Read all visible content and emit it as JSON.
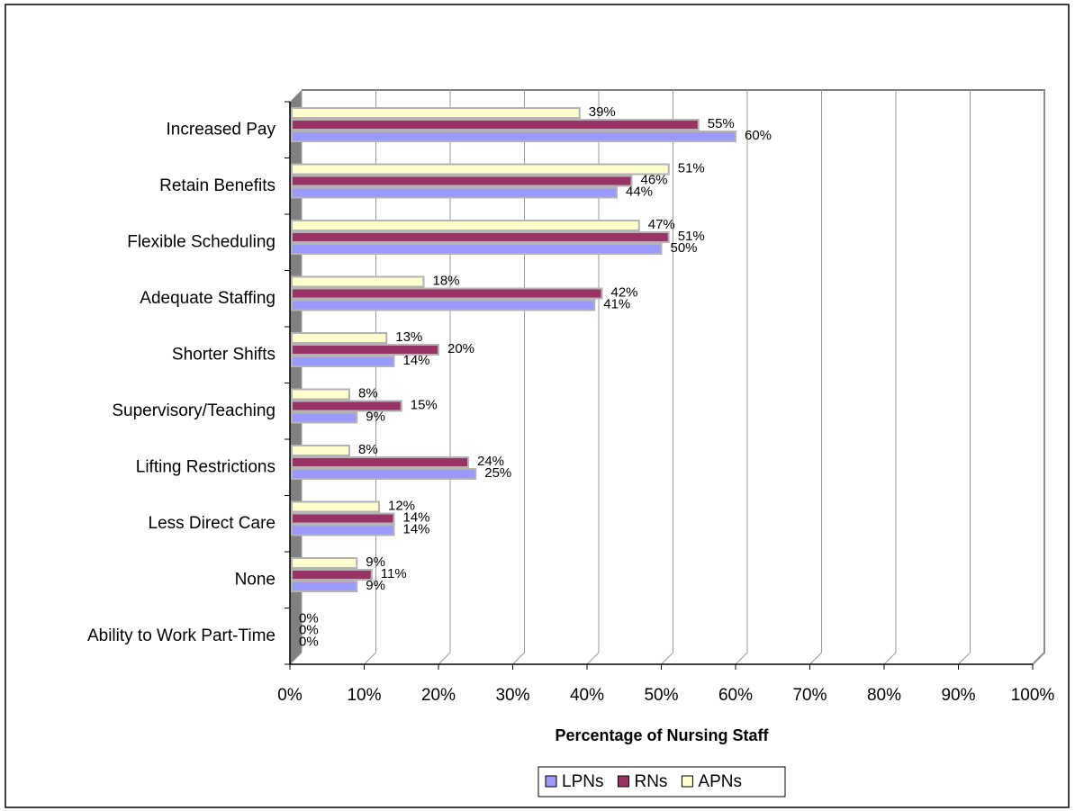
{
  "chart_data": {
    "type": "bar",
    "orientation": "horizontal",
    "x_axis_label": "Percentage of Nursing Staff",
    "categories": [
      "Increased Pay",
      "Retain Benefits",
      "Flexible Scheduling",
      "Adequate Staffing",
      "Shorter Shifts",
      "Supervisory/Teaching",
      "Lifting Restrictions",
      "Less Direct Care",
      "None",
      "Ability to Work Part-Time"
    ],
    "series": [
      {
        "name": "LPNs",
        "color": "#9999ff",
        "values": [
          60,
          44,
          50,
          41,
          14,
          9,
          25,
          14,
          9,
          0
        ],
        "value_labels": [
          "60%",
          "44%",
          "50%",
          "41%",
          "14%",
          "9%",
          "25%",
          "14%",
          "9%",
          "0%"
        ]
      },
      {
        "name": "RNs",
        "color": "#993366",
        "values": [
          55,
          46,
          51,
          42,
          20,
          15,
          24,
          14,
          11,
          0
        ],
        "value_labels": [
          "55%",
          "46%",
          "51%",
          "42%",
          "20%",
          "15%",
          "24%",
          "14%",
          "11%",
          "0%"
        ]
      },
      {
        "name": "APNs",
        "color": "#ffffcc",
        "values": [
          39,
          51,
          47,
          18,
          13,
          8,
          8,
          12,
          9,
          0
        ],
        "value_labels": [
          "39%",
          "51%",
          "47%",
          "18%",
          "13%",
          "8%",
          "8%",
          "12%",
          "9%",
          "0%"
        ]
      }
    ],
    "xlim": [
      0,
      100
    ],
    "xticks": [
      {
        "value": 0,
        "label": "0%"
      },
      {
        "value": 10,
        "label": "10%"
      },
      {
        "value": 20,
        "label": "20%"
      },
      {
        "value": 30,
        "label": "30%"
      },
      {
        "value": 40,
        "label": "40%"
      },
      {
        "value": 50,
        "label": "50%"
      },
      {
        "value": 60,
        "label": "60%"
      },
      {
        "value": 70,
        "label": "70%"
      },
      {
        "value": 80,
        "label": "80%"
      },
      {
        "value": 90,
        "label": "90%"
      },
      {
        "value": 100,
        "label": "100%"
      }
    ],
    "grid": true,
    "legend": "bottom"
  }
}
